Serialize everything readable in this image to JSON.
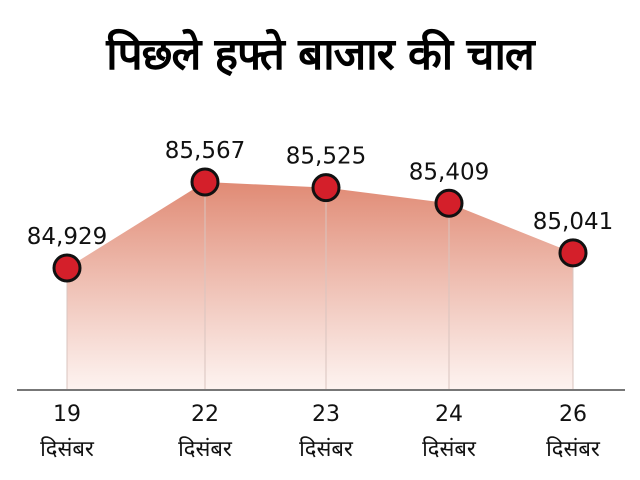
{
  "title": "पिछले हफ्ते बाजार की चाल",
  "colors": {
    "area_top": "#e08a74",
    "area_bottom": "#fbeae5",
    "marker_fill": "#d41f2a",
    "marker_stroke": "#111111",
    "axis": "#777777",
    "gridline": "#d9c4bf"
  },
  "chart_data": {
    "type": "area",
    "title": "पिछले हफ्ते बाजार की चाल",
    "categories": [
      "19 दिसंबर",
      "22 दिसंबर",
      "23 दिसंबर",
      "24 दिसंबर",
      "26 दिसंबर"
    ],
    "x_day": [
      "19",
      "22",
      "23",
      "24",
      "26"
    ],
    "x_month": [
      "दिसंबर",
      "दिसंबर",
      "दिसंबर",
      "दिसंबर",
      "दिसंबर"
    ],
    "values": [
      84929,
      85567,
      85525,
      85409,
      85041
    ],
    "value_labels": [
      "84,929",
      "85,567",
      "85,525",
      "85,409",
      "85,041"
    ],
    "xlabel": "",
    "ylabel": "",
    "grid": "vertical drop lines at each point",
    "legend": "none"
  }
}
